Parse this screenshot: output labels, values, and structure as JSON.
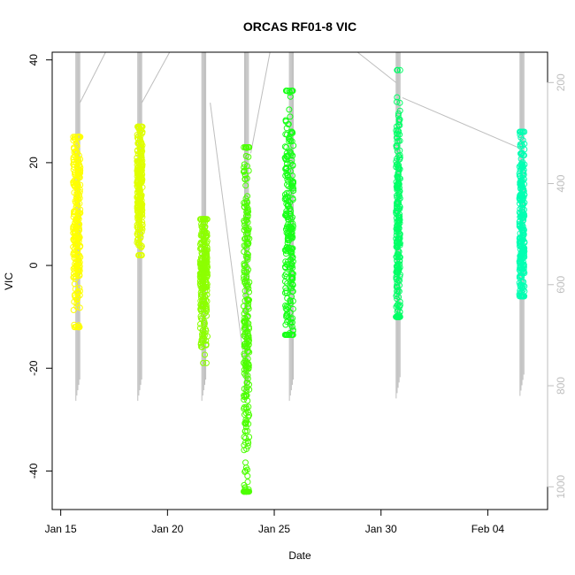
{
  "chart_data": {
    "type": "scatter",
    "title": "ORCAS RF01-8 VIC",
    "xlabel": "Date",
    "ylabel": "VIC",
    "x_ticks": [
      "Jan 15",
      "Jan 20",
      "Jan 25",
      "Jan 30",
      "Feb 04"
    ],
    "y_ticks": [
      "-40",
      "-20",
      "0",
      "20",
      "40"
    ],
    "y2_ticks": [
      "200",
      "400",
      "600",
      "800",
      "1000"
    ],
    "xlim_days": [
      14.6,
      37.8
    ],
    "ylim": [
      -47.5,
      41.5
    ],
    "y2lim_inverted": [
      1045,
      140
    ],
    "y2_axis_color": "#bebebe",
    "grid": false,
    "legend": "none",
    "series": [
      {
        "date": "2016-01-15",
        "day": 15.75,
        "x_spread": 0.17,
        "y_min": -12,
        "y_max": 25,
        "y_center": 10,
        "color": "#ffff00"
      },
      {
        "date": "2016-01-18",
        "day": 18.7,
        "x_spread": 0.13,
        "y_min": 2,
        "y_max": 27,
        "y_center": 15,
        "color": "#dfff00"
      },
      {
        "date": "2016-01-21",
        "day": 21.7,
        "x_spread": 0.17,
        "y_min": -19,
        "y_max": 9,
        "y_center": -2,
        "color": "#8cff00"
      },
      {
        "date": "2016-01-23",
        "day": 23.7,
        "x_spread": 0.13,
        "y_min": -44,
        "y_max": 23,
        "y_center": -10,
        "color": "#4cff00"
      },
      {
        "date": "2016-01-25",
        "day": 25.7,
        "x_spread": 0.2,
        "y_min": -13.5,
        "y_max": 34,
        "y_center": 8,
        "color": "#17ff17"
      },
      {
        "date": "2016-01-30",
        "day": 30.8,
        "x_spread": 0.1,
        "y_min": -10,
        "y_max": 38,
        "y_center": 6,
        "color": "#00ff66"
      },
      {
        "date": "2016-02-05",
        "day": 36.6,
        "x_spread": 0.12,
        "y_min": -6,
        "y_max": 26,
        "y_center": 8,
        "color": "#00ffb2"
      }
    ],
    "pressure_trace": {
      "color": "#bebebe",
      "description_units": "hPa",
      "flights": [
        {
          "day": 15.8,
          "top": 140,
          "bottom": 830
        },
        {
          "day": 18.7,
          "top": 140,
          "bottom": 830
        },
        {
          "day": 21.7,
          "top": 140,
          "bottom": 830
        },
        {
          "day": 23.7,
          "top": 140,
          "bottom": 830
        },
        {
          "day": 25.8,
          "top": 140,
          "bottom": 830
        },
        {
          "day": 30.8,
          "top": 140,
          "bottom": 825
        },
        {
          "day": 36.6,
          "top": 140,
          "bottom": 820
        }
      ],
      "connectors": [
        [
          15.9,
          240,
          17.1,
          140
        ],
        [
          18.8,
          240,
          20.1,
          140
        ],
        [
          22.0,
          240,
          23.8,
          820
        ],
        [
          23.9,
          340,
          24.8,
          140
        ],
        [
          25.8,
          140,
          28.9,
          140
        ],
        [
          28.9,
          140,
          30.7,
          200
        ],
        [
          31.0,
          230,
          36.5,
          330
        ]
      ]
    }
  }
}
